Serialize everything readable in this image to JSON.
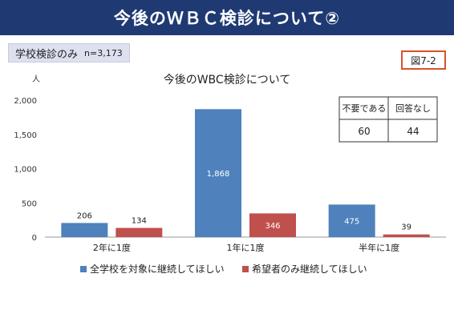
{
  "page_title": "今後のＷＢＣ検診について②",
  "subset": {
    "label": "学校検診のみ",
    "n": "n=3,173"
  },
  "figure_label": "図7-2",
  "chart_data": {
    "type": "bar",
    "title": "今後のWBC検診について",
    "y_unit": "人",
    "ylim": [
      0,
      2000
    ],
    "yticks": [
      0,
      500,
      1000,
      1500,
      2000
    ],
    "ytick_labels": [
      "0",
      "500",
      "1,000",
      "1,500",
      "2,000"
    ],
    "categories": [
      "2年に1度",
      "1年に1度",
      "半年に1度"
    ],
    "series": [
      {
        "name": "全学校を対象に継続してほしい",
        "values": [
          206,
          1868,
          475
        ],
        "labels": [
          "206",
          "1,868",
          "475"
        ],
        "color": "#4f81bd"
      },
      {
        "name": "希望者のみ継続してほしい",
        "values": [
          134,
          346,
          39
        ],
        "labels": [
          "134",
          "346",
          "39"
        ],
        "color": "#c0504d"
      }
    ],
    "legend_position": "bottom",
    "grid": false,
    "inset_table": {
      "headers": [
        "不要である",
        "回答なし"
      ],
      "values": [
        "60",
        "44"
      ]
    }
  }
}
